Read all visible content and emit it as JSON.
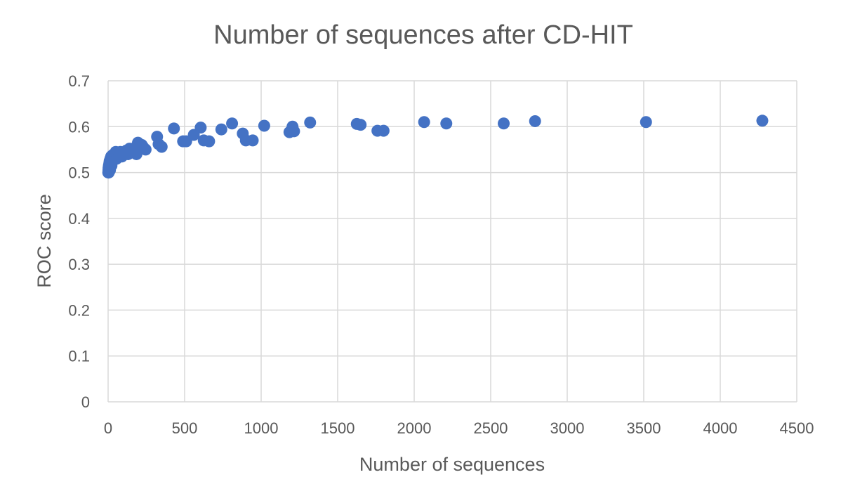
{
  "chart_data": {
    "type": "scatter",
    "title": "Number of sequences after CD-HIT",
    "xlabel": "Number of sequences",
    "ylabel": "ROC score",
    "xlim": [
      0,
      4500
    ],
    "ylim": [
      0,
      0.7
    ],
    "xticks": [
      "0",
      "500",
      "1000",
      "1500",
      "2000",
      "2500",
      "3000",
      "3500",
      "4000",
      "4500"
    ],
    "yticks": [
      "0",
      "0.1",
      "0.2",
      "0.3",
      "0.4",
      "0.5",
      "0.6",
      "0.7"
    ],
    "grid": true,
    "marker_color": "#4472c4",
    "points": [
      [
        1,
        0.5
      ],
      [
        2,
        0.505
      ],
      [
        3,
        0.51
      ],
      [
        4,
        0.5
      ],
      [
        5,
        0.515
      ],
      [
        6,
        0.508
      ],
      [
        8,
        0.52
      ],
      [
        10,
        0.525
      ],
      [
        10,
        0.512
      ],
      [
        12,
        0.505
      ],
      [
        15,
        0.53
      ],
      [
        18,
        0.52
      ],
      [
        20,
        0.535
      ],
      [
        22,
        0.515
      ],
      [
        25,
        0.525
      ],
      [
        28,
        0.532
      ],
      [
        30,
        0.538
      ],
      [
        35,
        0.528
      ],
      [
        40,
        0.54
      ],
      [
        45,
        0.535
      ],
      [
        50,
        0.545
      ],
      [
        55,
        0.53
      ],
      [
        60,
        0.538
      ],
      [
        65,
        0.542
      ],
      [
        70,
        0.535
      ],
      [
        75,
        0.54
      ],
      [
        80,
        0.545
      ],
      [
        90,
        0.535
      ],
      [
        95,
        0.542
      ],
      [
        100,
        0.538
      ],
      [
        110,
        0.545
      ],
      [
        120,
        0.548
      ],
      [
        130,
        0.54
      ],
      [
        140,
        0.552
      ],
      [
        150,
        0.545
      ],
      [
        160,
        0.55
      ],
      [
        170,
        0.548
      ],
      [
        180,
        0.555
      ],
      [
        185,
        0.54
      ],
      [
        195,
        0.565
      ],
      [
        200,
        0.552
      ],
      [
        210,
        0.558
      ],
      [
        220,
        0.56
      ],
      [
        230,
        0.555
      ],
      [
        245,
        0.55
      ],
      [
        320,
        0.578
      ],
      [
        330,
        0.562
      ],
      [
        350,
        0.556
      ],
      [
        430,
        0.596
      ],
      [
        490,
        0.568
      ],
      [
        510,
        0.568
      ],
      [
        560,
        0.582
      ],
      [
        605,
        0.598
      ],
      [
        625,
        0.57
      ],
      [
        660,
        0.568
      ],
      [
        740,
        0.594
      ],
      [
        810,
        0.607
      ],
      [
        880,
        0.585
      ],
      [
        900,
        0.57
      ],
      [
        945,
        0.57
      ],
      [
        1020,
        0.602
      ],
      [
        1185,
        0.588
      ],
      [
        1205,
        0.6
      ],
      [
        1215,
        0.59
      ],
      [
        1320,
        0.609
      ],
      [
        1625,
        0.606
      ],
      [
        1650,
        0.604
      ],
      [
        1760,
        0.591
      ],
      [
        1800,
        0.591
      ],
      [
        2065,
        0.61
      ],
      [
        2210,
        0.607
      ],
      [
        2585,
        0.607
      ],
      [
        2790,
        0.612
      ],
      [
        3515,
        0.61
      ],
      [
        4275,
        0.613
      ]
    ]
  }
}
